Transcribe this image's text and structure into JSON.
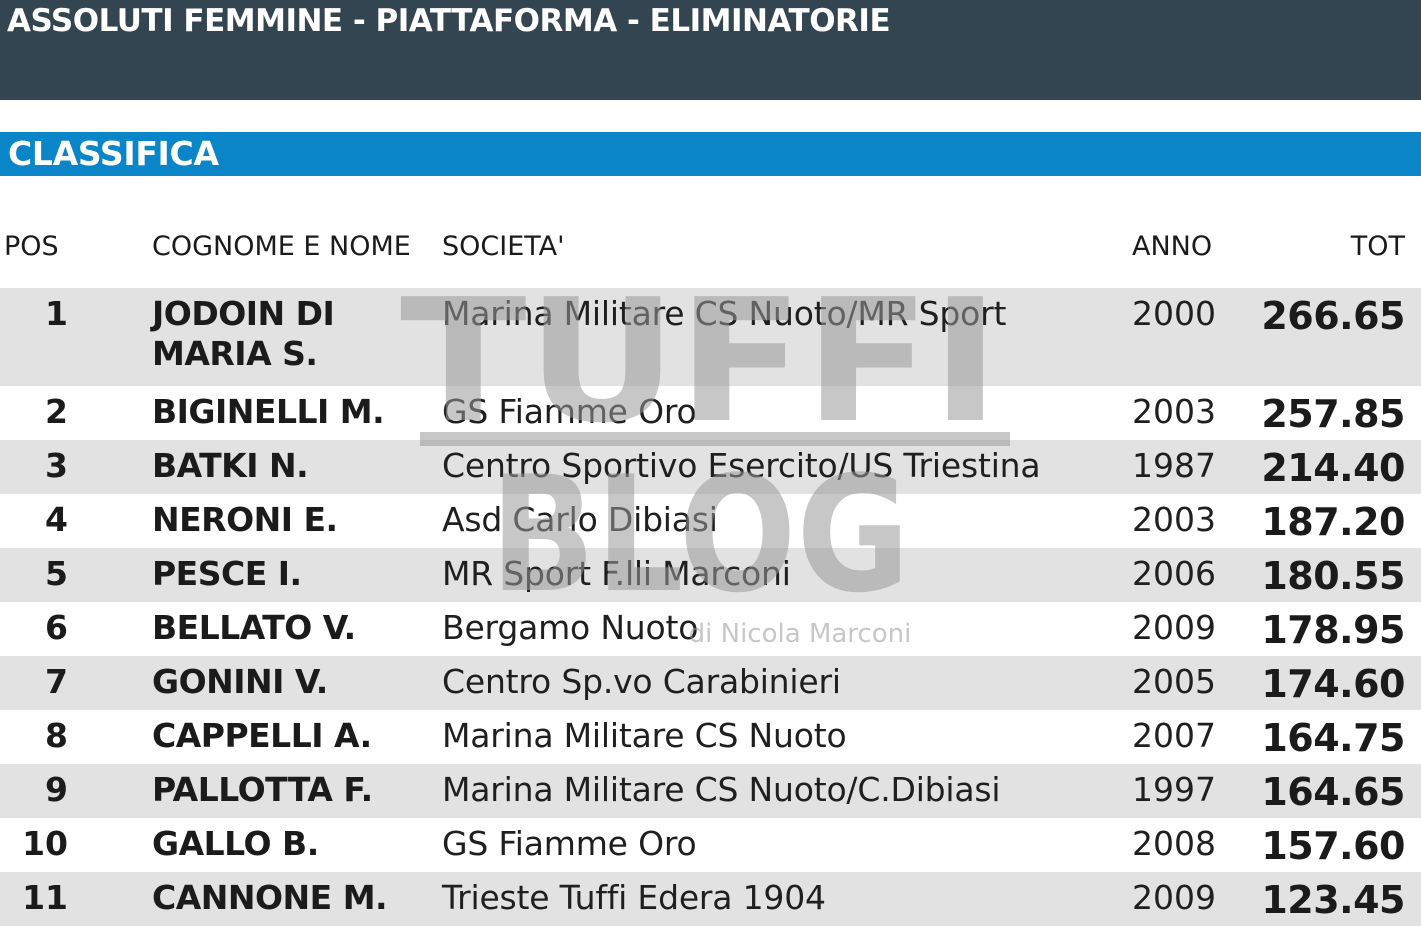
{
  "header": {
    "title": "ASSOLUTI FEMMINE - PIATTAFORMA - ELIMINATORIE"
  },
  "section": {
    "title": "CLASSIFICA"
  },
  "table": {
    "columns": {
      "pos": "POS",
      "name": "COGNOME E NOME",
      "societa": "SOCIETA'",
      "anno": "ANNO",
      "tot": "TOT"
    },
    "rows": [
      {
        "pos": "1",
        "name": "JODOIN DI MARIA S.",
        "societa": "Marina Militare CS Nuoto/MR Sport",
        "anno": "2000",
        "tot": "266.65"
      },
      {
        "pos": "2",
        "name": "BIGINELLI M.",
        "societa": "GS Fiamme Oro",
        "anno": "2003",
        "tot": "257.85"
      },
      {
        "pos": "3",
        "name": "BATKI N.",
        "societa": "Centro Sportivo Esercito/US Triestina",
        "anno": "1987",
        "tot": "214.40"
      },
      {
        "pos": "4",
        "name": "NERONI E.",
        "societa": "Asd Carlo Dibiasi",
        "anno": "2003",
        "tot": "187.20"
      },
      {
        "pos": "5",
        "name": "PESCE I.",
        "societa": "MR Sport F.lli Marconi",
        "anno": "2006",
        "tot": "180.55"
      },
      {
        "pos": "6",
        "name": "BELLATO V.",
        "societa": "Bergamo Nuoto",
        "anno": "2009",
        "tot": "178.95"
      },
      {
        "pos": "7",
        "name": "GONINI V.",
        "societa": "Centro Sp.vo Carabinieri",
        "anno": "2005",
        "tot": "174.60"
      },
      {
        "pos": "8",
        "name": "CAPPELLI A.",
        "societa": "Marina Militare CS Nuoto",
        "anno": "2007",
        "tot": "164.75"
      },
      {
        "pos": "9",
        "name": "PALLOTTA F.",
        "societa": "Marina Militare CS Nuoto/C.Dibiasi",
        "anno": "1997",
        "tot": "164.65"
      },
      {
        "pos": "10",
        "name": "GALLO B.",
        "societa": "GS Fiamme Oro",
        "anno": "2008",
        "tot": "157.60"
      },
      {
        "pos": "11",
        "name": "CANNONE M.",
        "societa": "Trieste Tuffi Edera 1904",
        "anno": "2009",
        "tot": "123.45"
      }
    ]
  },
  "watermark": {
    "line1": "TUFFI",
    "line2": "BLOG",
    "byline": "di Nicola Marconi",
    "color": "#9a9a9a"
  }
}
